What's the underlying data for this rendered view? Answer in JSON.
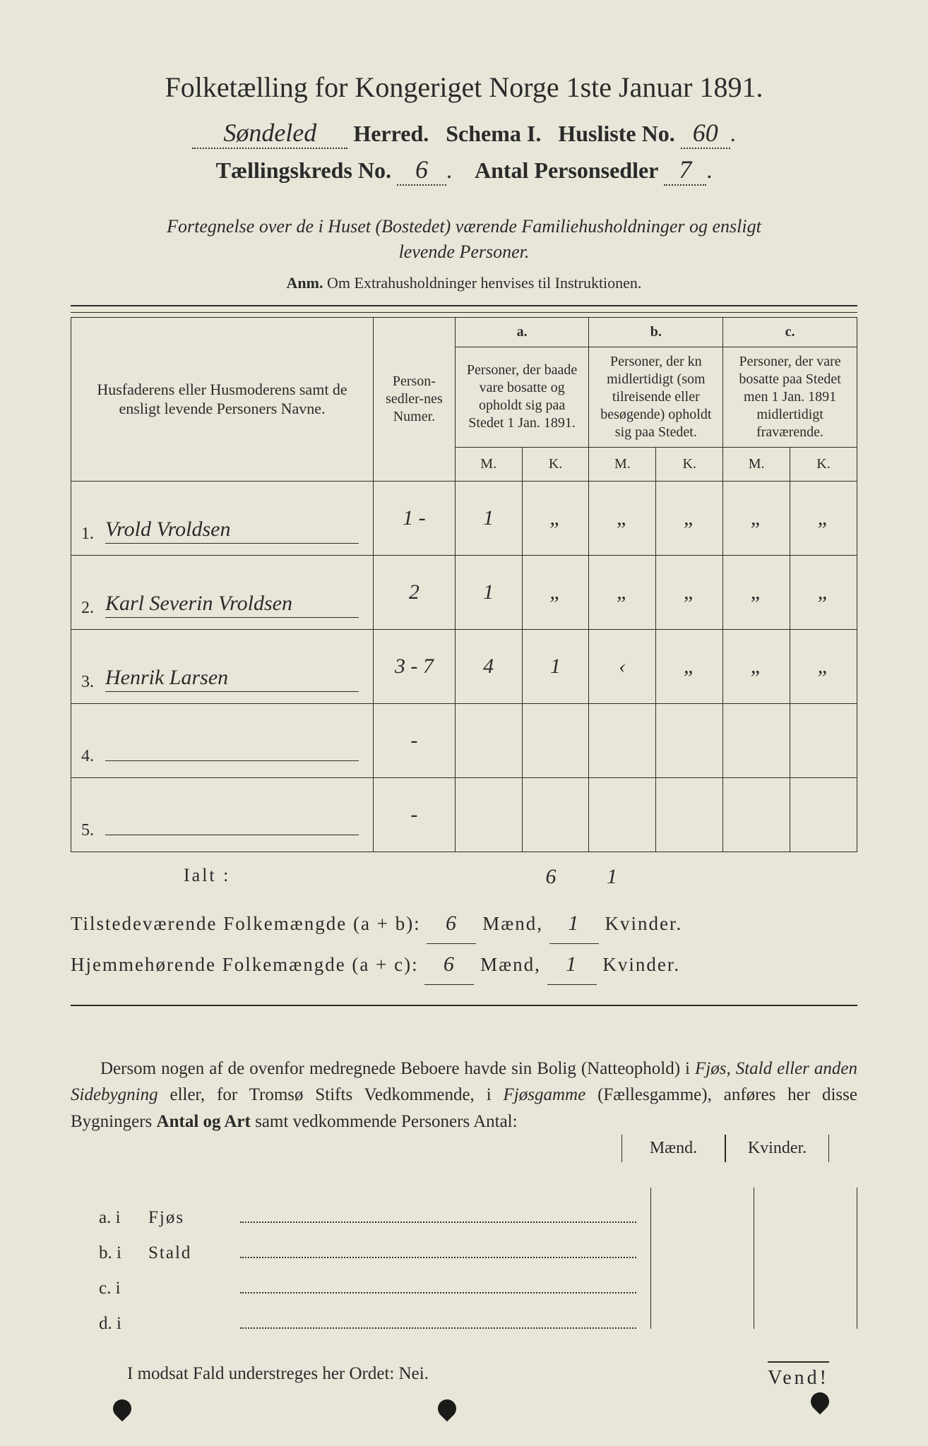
{
  "colors": {
    "page_bg": "#e8e6d8",
    "outer_bg": "#3a3a38",
    "ink": "#2a2a2a",
    "hand_ink": "#2a2a2a"
  },
  "typography": {
    "title_fontsize_pt": 30,
    "header_fontsize_pt": 24,
    "body_fontsize_pt": 19,
    "hand_fontsize_pt": 27,
    "font_family_print": "Times New Roman",
    "font_family_hand": "Brush Script / cursive"
  },
  "header": {
    "title": "Folketælling for Kongeriget Norge 1ste Januar 1891.",
    "herred_hand": "Søndeled",
    "herred_label": "Herred.",
    "schema_label": "Schema I.",
    "husliste_label": "Husliste No.",
    "husliste_hand": "60",
    "kreds_label": "Tællingskreds No.",
    "kreds_hand": "6",
    "antal_label": "Antal Personsedler",
    "antal_hand": "7"
  },
  "subtitle": {
    "line1": "Fortegnelse over de i Huset (Bostedet) værende Familiehusholdninger og ensligt",
    "line2": "levende Personer.",
    "anm_bold": "Anm.",
    "anm_rest": " Om Extrahusholdninger henvises til Instruktionen."
  },
  "table": {
    "col_name": "Husfaderens eller Husmoderens samt de ensligt levende Personers Navne.",
    "col_num": "Person-sedler-nes Numer.",
    "col_a_head": "a.",
    "col_a": "Personer, der baade vare bosatte og opholdt sig paa Stedet 1 Jan. 1891.",
    "col_b_head": "b.",
    "col_b": "Personer, der kn midlertidigt (som tilreisende eller besøgende) opholdt sig paa Stedet.",
    "col_c_head": "c.",
    "col_c": "Personer, der vare bosatte paa Stedet men 1 Jan. 1891 midlertidigt fraværende.",
    "m": "M.",
    "k": "K.",
    "rows": [
      {
        "n": "1.",
        "name": "Vrold Vroldsen",
        "num": "1 -",
        "aM": "1",
        "aK": "„",
        "bM": "„",
        "bK": "„",
        "cM": "„",
        "cK": "„"
      },
      {
        "n": "2.",
        "name": "Karl Severin Vroldsen",
        "num": "2",
        "aM": "1",
        "aK": "„",
        "bM": "„",
        "bK": "„",
        "cM": "„",
        "cK": "„"
      },
      {
        "n": "3.",
        "name": "Henrik Larsen",
        "num": "3 - 7",
        "aM": "4",
        "aK": "1",
        "bM": "‹",
        "bK": "„",
        "cM": "„",
        "cK": "„"
      },
      {
        "n": "4.",
        "name": "",
        "num": "-",
        "aM": "",
        "aK": "",
        "bM": "",
        "bK": "",
        "cM": "",
        "cK": ""
      },
      {
        "n": "5.",
        "name": "",
        "num": "-",
        "aM": "",
        "aK": "",
        "bM": "",
        "bK": "",
        "cM": "",
        "cK": ""
      }
    ],
    "ialt_label": "Ialt :",
    "ialt_aM": "6",
    "ialt_aK": "1"
  },
  "summary": {
    "line1_pre": "Tilstedeværende Folkemængde (a + b):",
    "line1_m": "6",
    "line1_mid": "Mænd,",
    "line1_k": "1",
    "line1_end": "Kvinder.",
    "line2_pre": "Hjemmehørende Folkemængde (a + c):",
    "line2_m": "6",
    "line2_mid": "Mænd,",
    "line2_k": "1",
    "line2_end": "Kvinder."
  },
  "paragraph": "Dersom nogen af de ovenfor medregnede Beboere havde sin Bolig (Natteophold) i Fjøs, Stald eller anden Sidebygning eller, for Tromsø Stifts Vedkommende, i Fjøsgamme (Fællesgamme), anføres her disse Bygningers Antal og Art samt vedkommende Personers Antal:",
  "outbuild": {
    "maend": "Mænd.",
    "kvinder": "Kvinder.",
    "rows": [
      {
        "lab": "a.  i",
        "type": "Fjøs"
      },
      {
        "lab": "b.  i",
        "type": "Stald"
      },
      {
        "lab": "c.  i",
        "type": ""
      },
      {
        "lab": "d.  i",
        "type": ""
      }
    ]
  },
  "nei": "I modsat Fald understreges her Ordet: Nei.",
  "vend": "Vend!"
}
